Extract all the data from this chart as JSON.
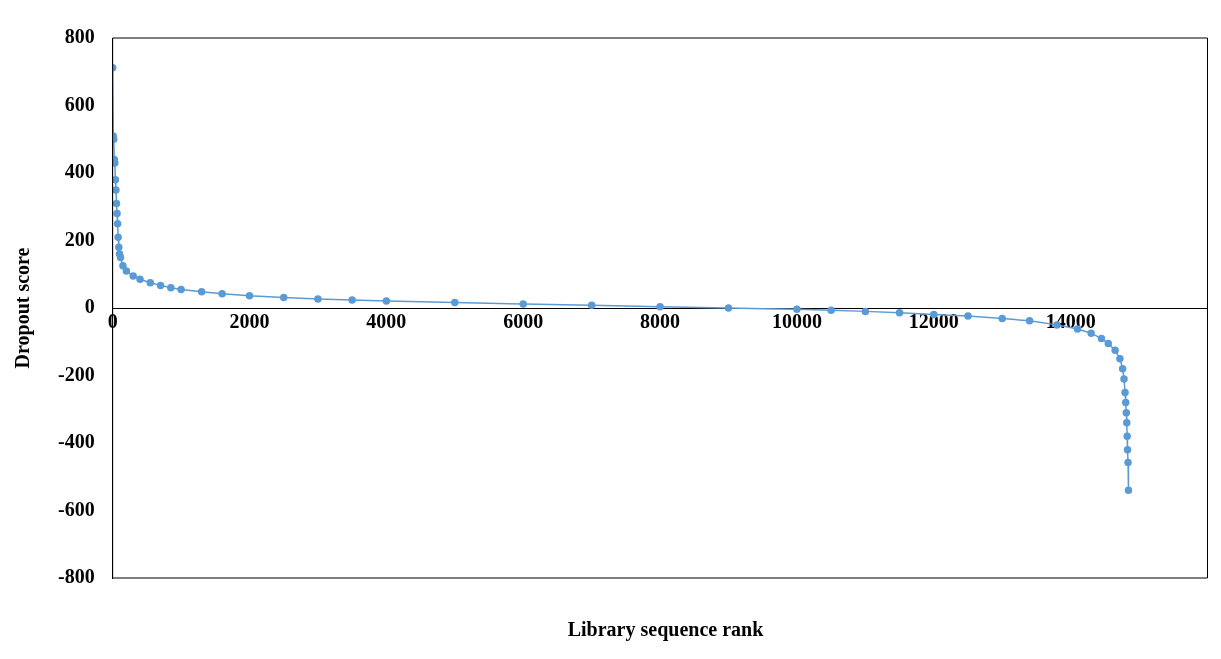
{
  "chart_data": {
    "type": "line",
    "xlabel": "Library sequence rank",
    "ylabel": "Dropout score",
    "xlim": [
      0,
      16000
    ],
    "xticks": [
      0,
      2000,
      4000,
      6000,
      8000,
      10000,
      12000,
      14000
    ],
    "ylim": [
      -800,
      800
    ],
    "yticks": [
      -800,
      -600,
      -400,
      -200,
      0,
      200,
      400,
      600,
      800
    ],
    "grid": false,
    "legend": false,
    "marker": "circle",
    "line_style": "solid",
    "series": [
      {
        "color": "#5b9bd5",
        "x": [
          0,
          8,
          16,
          24,
          32,
          40,
          48,
          56,
          64,
          72,
          80,
          90,
          100,
          115,
          150,
          200,
          300,
          400,
          550,
          700,
          850,
          1000,
          1300,
          1600,
          2000,
          2500,
          3000,
          3500,
          4000,
          5000,
          6000,
          7000,
          8000,
          9000,
          10000,
          10500,
          11000,
          11500,
          12000,
          12500,
          13000,
          13400,
          13800,
          14100,
          14300,
          14450,
          14550,
          14650,
          14720,
          14760,
          14780,
          14795,
          14805,
          14813,
          14820,
          14826,
          14831,
          14839,
          14845
        ],
        "values": [
          712,
          510,
          500,
          440,
          430,
          380,
          350,
          310,
          280,
          250,
          210,
          180,
          160,
          150,
          125,
          110,
          95,
          85,
          75,
          67,
          60,
          55,
          48,
          42,
          36,
          31,
          27,
          24,
          21,
          16,
          12,
          8,
          4,
          0,
          -4,
          -7,
          -10,
          -14,
          -19,
          -24,
          -31,
          -38,
          -50,
          -62,
          -75,
          -90,
          -105,
          -125,
          -150,
          -180,
          -210,
          -250,
          -280,
          -310,
          -340,
          -380,
          -420,
          -458,
          -540
        ]
      }
    ]
  }
}
